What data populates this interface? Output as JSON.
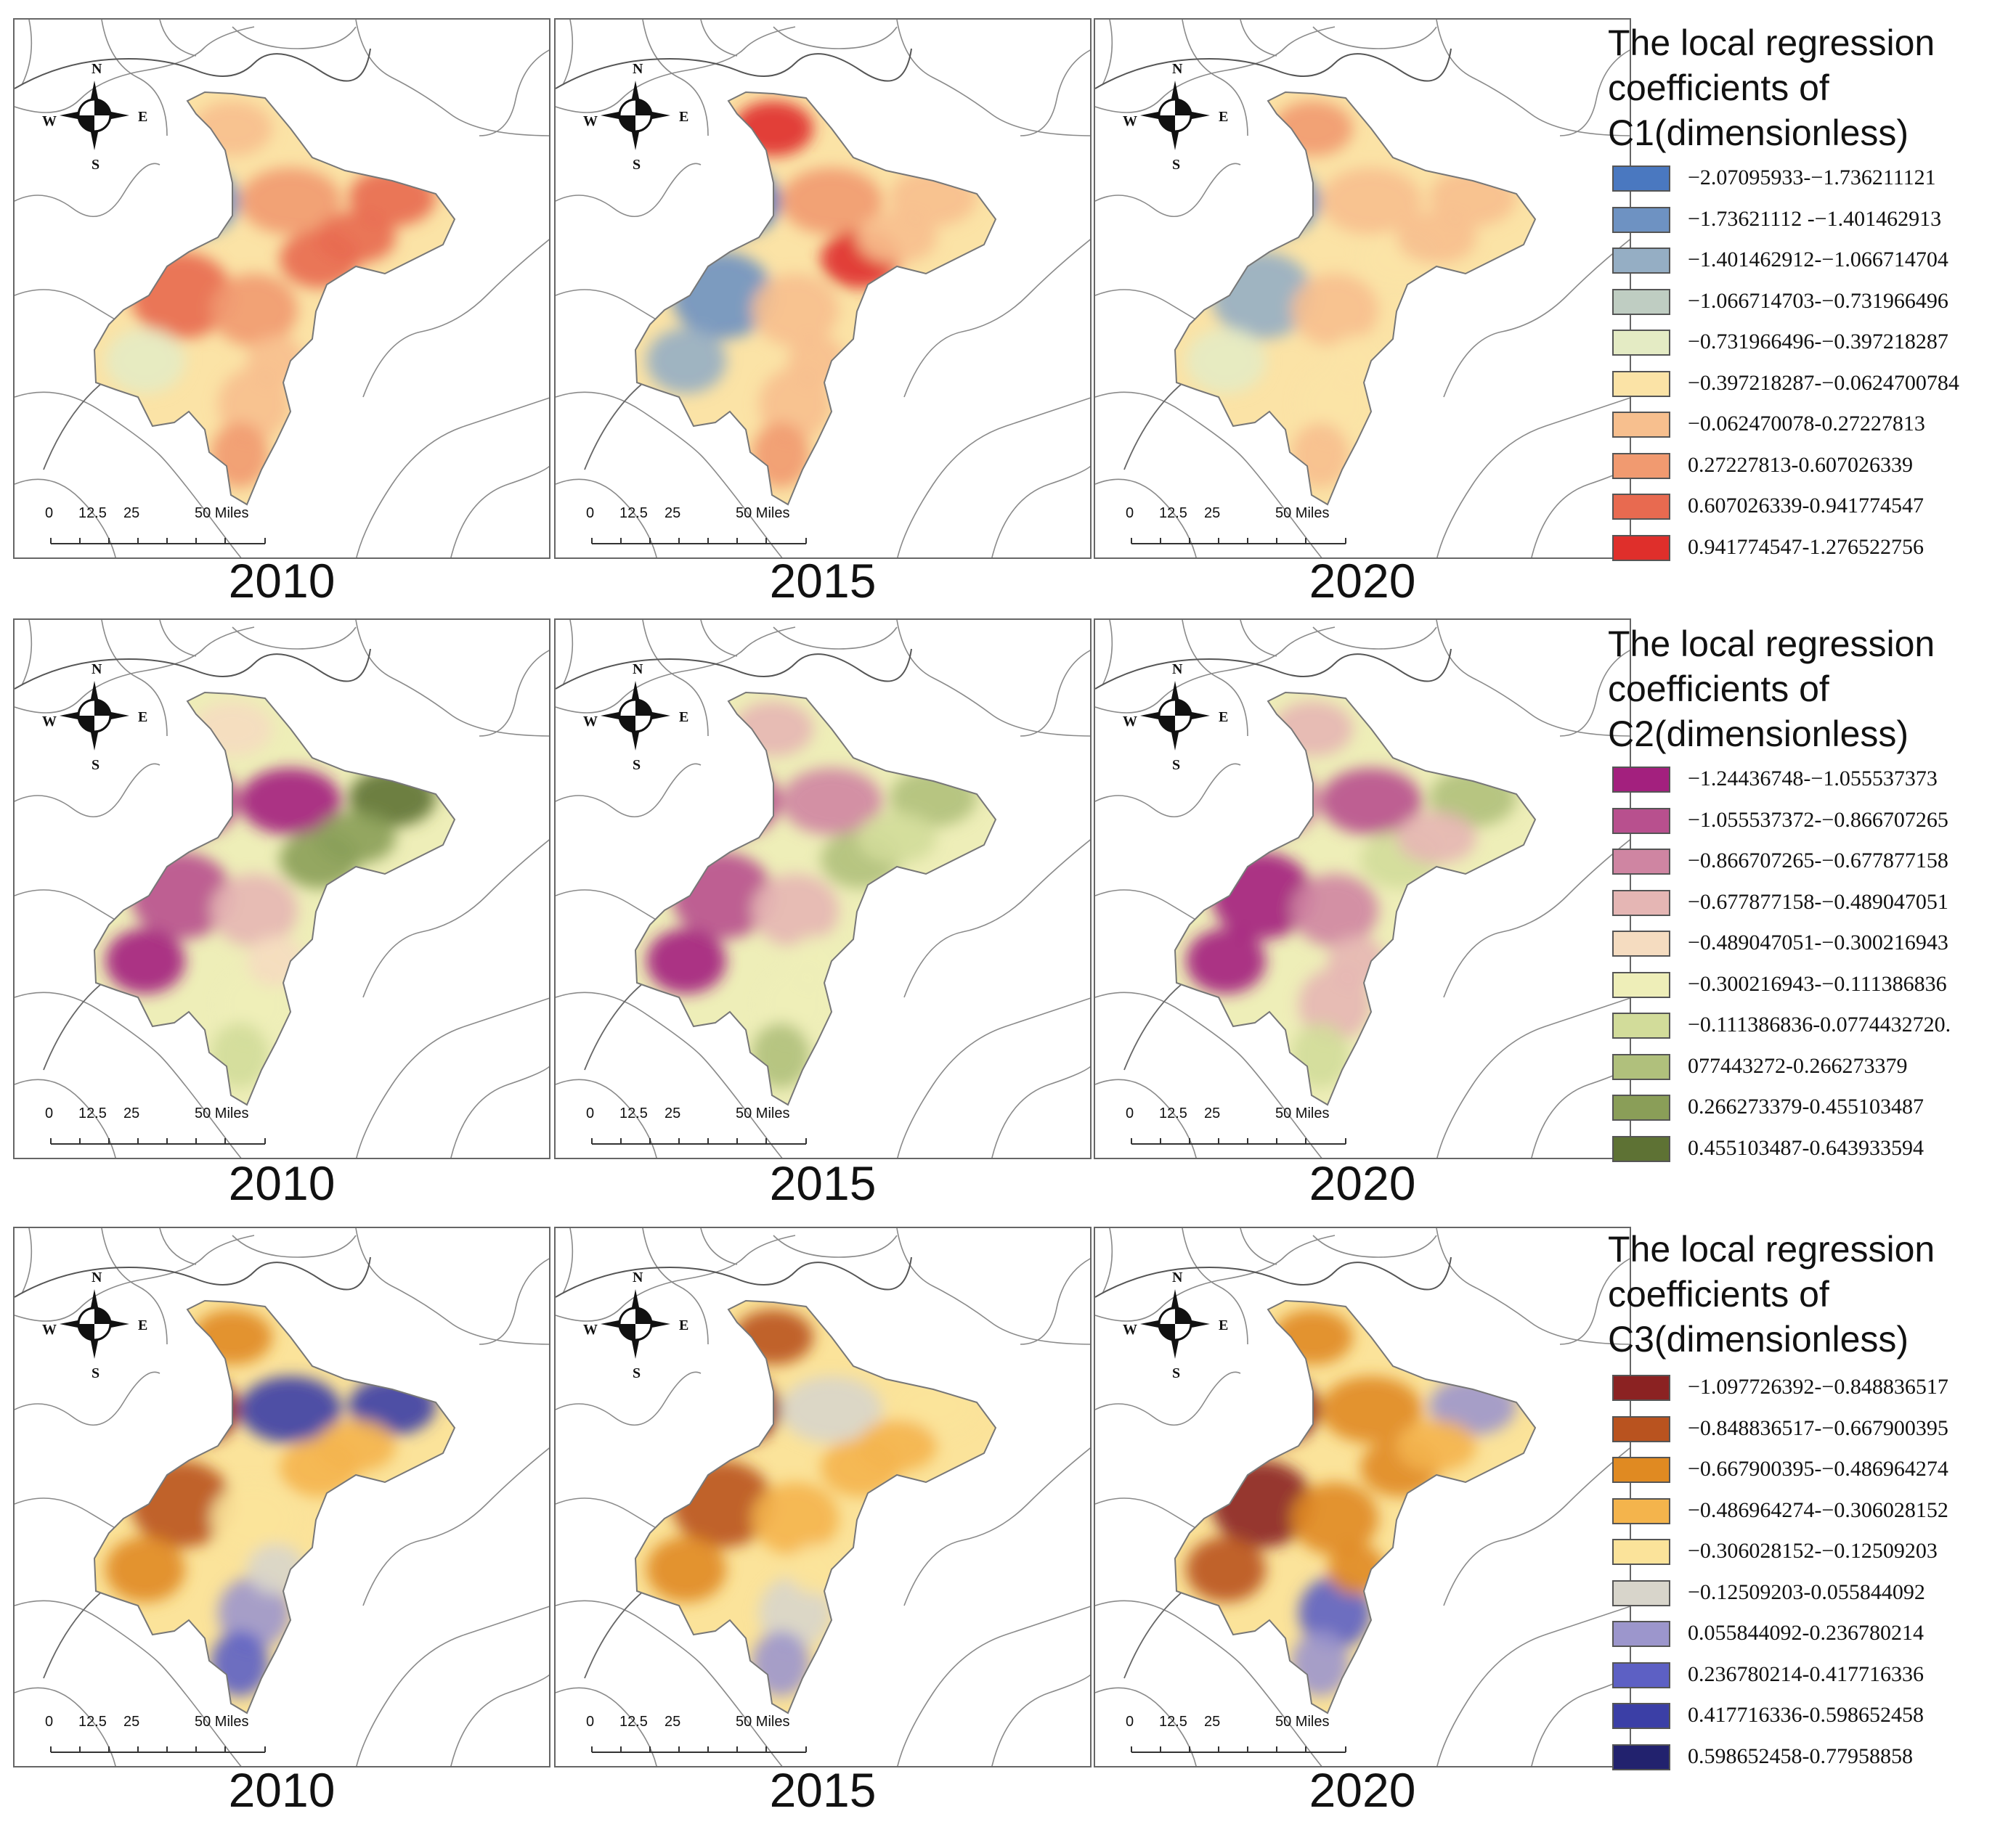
{
  "figure": {
    "years": [
      "2010",
      "2015",
      "2020"
    ],
    "compass": {
      "n": "N",
      "s": "S",
      "e": "E",
      "w": "W",
      "icon": "compass-rose-icon"
    },
    "scale": {
      "labels": [
        "0",
        "12.5",
        "25",
        "50 Miles"
      ]
    }
  },
  "rows": [
    {
      "id": "c1",
      "legend_title": [
        "The local regression",
        "coefficients of",
        "C1(dimensionless)"
      ],
      "legend": [
        {
          "label": "−2.07095933-−1.736211121",
          "color": "#4a78c0"
        },
        {
          "label": "−1.73621112 -−1.401462913",
          "color": "#6e92c2"
        },
        {
          "label": "−1.401462912-−1.066714704",
          "color": "#95aec4"
        },
        {
          "label": "−1.066714703-−0.731966496",
          "color": "#bfcdc2"
        },
        {
          "label": "−0.731966496-−0.397218287",
          "color": "#e4ebc4"
        },
        {
          "label": "−0.397218287-−0.0624700784",
          "color": "#fbe3a6"
        },
        {
          "label": "−0.062470078-0.27227813",
          "color": "#f7bf8e"
        },
        {
          "label": "0.27227813-0.607026339",
          "color": "#f19a70"
        },
        {
          "label": "0.607026339-0.941774547",
          "color": "#e86a50"
        },
        {
          "label": "0.941774547-1.276522756",
          "color": "#df2f2b"
        }
      ],
      "years": [
        "2010",
        "2015",
        "2020"
      ]
    },
    {
      "id": "c2",
      "legend_title": [
        "The local regression",
        "coefficients of",
        "C2(dimensionless)"
      ],
      "legend": [
        {
          "label": "−1.24436748-−1.055537373",
          "color": "#a3207e"
        },
        {
          "label": "−1.055537372-−0.866707265",
          "color": "#b8508e"
        },
        {
          "label": "−0.866707265-−0.677877158",
          "color": "#cf85a2"
        },
        {
          "label": "−0.677877158-−0.489047051",
          "color": "#e5b6b4"
        },
        {
          "label": "−0.489047051-−0.300216943",
          "color": "#f5dcc0"
        },
        {
          "label": "−0.300216943-−0.111386836",
          "color": "#eeeeb8"
        },
        {
          "label": "−0.111386836-0.0774432720.",
          "color": "#d2dc9a"
        },
        {
          "label": "077443272-0.266273379",
          "color": "#b0c07c"
        },
        {
          "label": "0.266273379-0.455103487",
          "color": "#8a9e58"
        },
        {
          "label": "0.455103487-0.643933594",
          "color": "#5e7234"
        }
      ],
      "years": [
        "2010",
        "2015",
        "2020"
      ]
    },
    {
      "id": "c3",
      "legend_title": [
        "The local regression",
        "coefficients of",
        "C3(dimensionless)"
      ],
      "legend": [
        {
          "label": "−1.097726392-−0.848836517",
          "color": "#8b2222"
        },
        {
          "label": "−0.848836517-−0.667900395",
          "color": "#b9531f"
        },
        {
          "label": "−0.667900395-−0.486964274",
          "color": "#e08a22"
        },
        {
          "label": "−0.486964274-−0.306028152",
          "color": "#f4b44c"
        },
        {
          "label": "−0.306028152-−0.12509203",
          "color": "#fbe39a"
        },
        {
          "label": "−0.12509203-0.055844092",
          "color": "#d8d5cb"
        },
        {
          "label": "0.055844092-0.236780214",
          "color": "#9c96cc"
        },
        {
          "label": "0.236780214-0.417716336",
          "color": "#5d60c4"
        },
        {
          "label": "0.417716336-0.598652458",
          "color": "#3b3fa6"
        },
        {
          "label": "0.598652458-0.77958858",
          "color": "#22226e"
        }
      ],
      "years": [
        "2010",
        "2015",
        "2020"
      ]
    }
  ]
}
